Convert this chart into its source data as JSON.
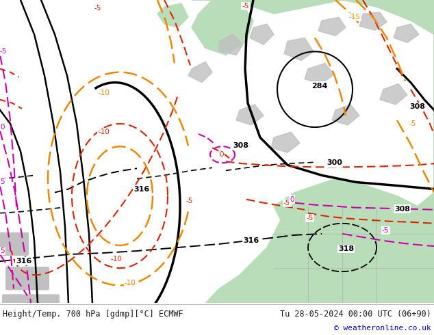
{
  "title_left": "Height/Temp. 700 hPa [gdmp][°C] ECMWF",
  "title_right": "Tu 28-05-2024 00:00 UTC (06+90)",
  "copyright": "© weatheronline.co.uk",
  "bg_color": "#ffffff",
  "map_bg": "#e8e8e8",
  "figwidth": 6.34,
  "figheight": 4.9,
  "dpi": 100,
  "text_color_main": "#1a1a1a",
  "text_color_copy": "#0000cc",
  "font_size_title": 8.5,
  "font_size_copy": 8.0
}
